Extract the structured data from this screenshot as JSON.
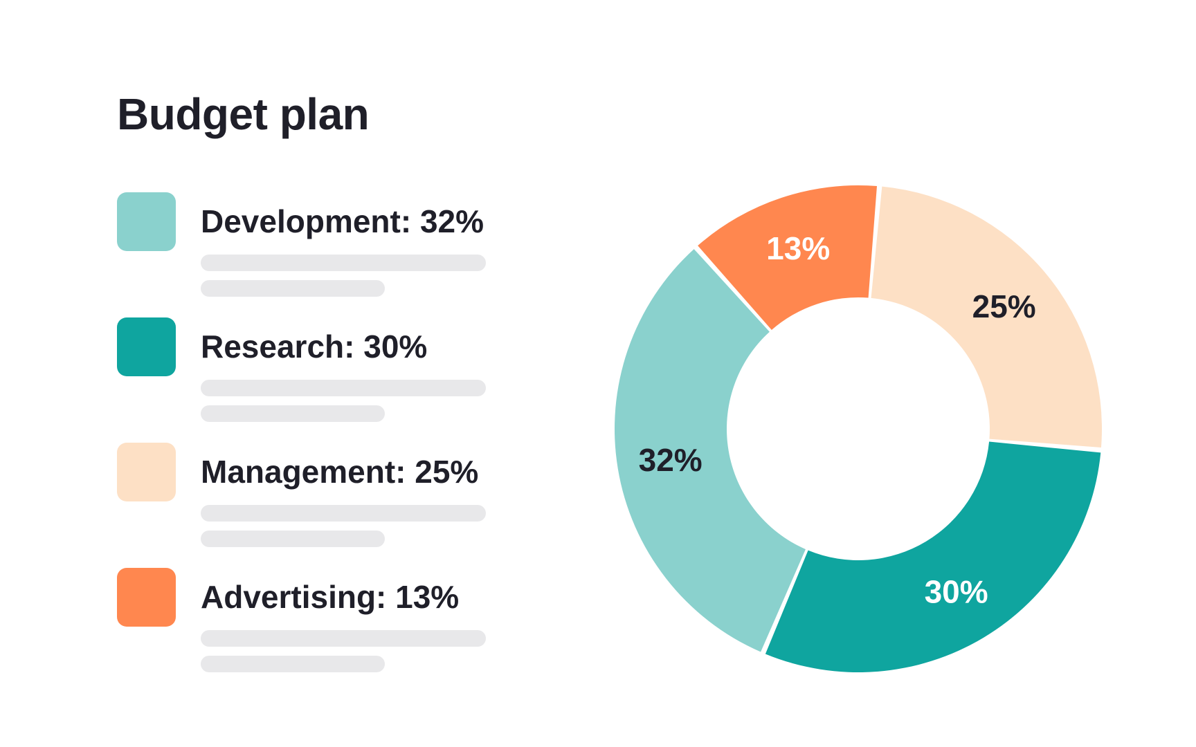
{
  "chart_data": {
    "type": "pie",
    "title": "Budget plan",
    "categories": [
      "Development",
      "Research",
      "Management",
      "Advertising"
    ],
    "values": [
      32,
      30,
      25,
      13
    ],
    "unit": "%",
    "colors": [
      "#8ad1cd",
      "#0fa59f",
      "#fde0c5",
      "#ff874f"
    ],
    "label_colors": [
      "#1f1f29",
      "#ffffff",
      "#1f1f29",
      "#ffffff"
    ],
    "donut": true,
    "legend_placement": "left",
    "legend": [
      {
        "label": "Development: 32%"
      },
      {
        "label": "Research: 30%"
      },
      {
        "label": "Management: 25%"
      },
      {
        "label": "Advertising: 13%"
      }
    ],
    "slice_labels": [
      "32%",
      "30%",
      "25%",
      "13%"
    ]
  }
}
